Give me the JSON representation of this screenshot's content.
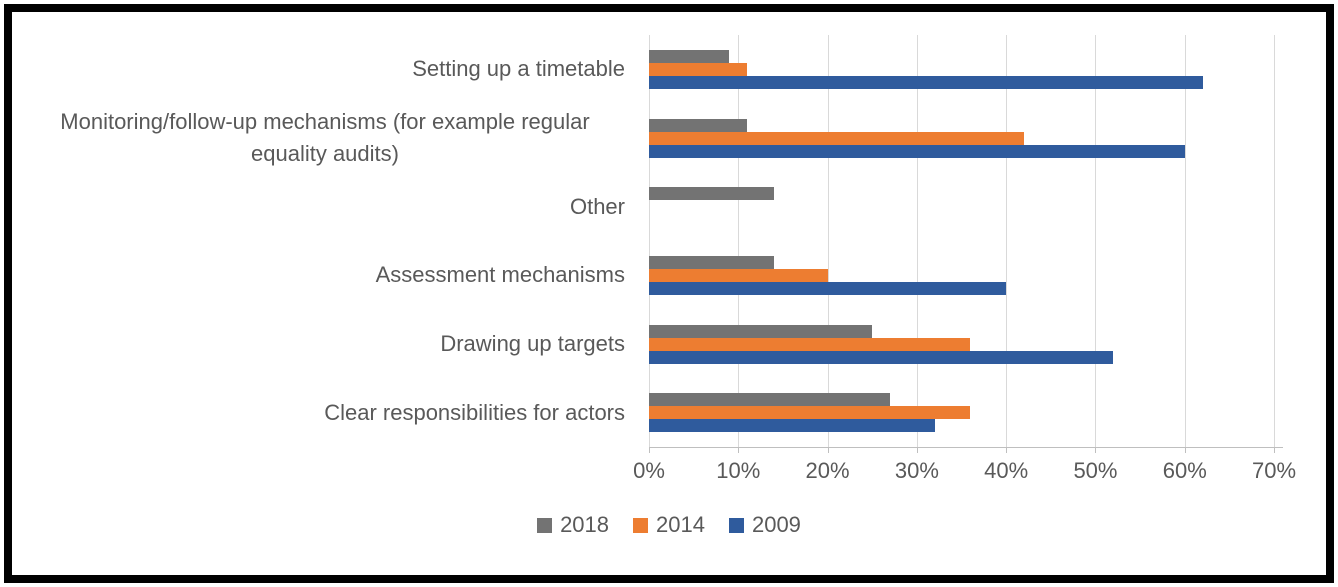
{
  "chart_data": {
    "type": "bar",
    "orientation": "horizontal",
    "title": "",
    "categories": [
      "Setting up a timetable",
      "Monitoring/follow-up mechanisms (for example regular equality audits)",
      "Other",
      "Assessment mechanisms",
      "Drawing up targets",
      "Clear responsibilities for actors"
    ],
    "series": [
      {
        "name": "2018",
        "color": "#737373",
        "values": [
          9,
          11,
          14,
          14,
          25,
          27
        ]
      },
      {
        "name": "2014",
        "color": "#ED7D31",
        "values": [
          11,
          42,
          0,
          20,
          36,
          36
        ]
      },
      {
        "name": "2009",
        "color": "#2F5B9D",
        "values": [
          62,
          60,
          0,
          40,
          52,
          32
        ]
      }
    ],
    "x_axis": {
      "unit": "%",
      "min": 0,
      "max": 70,
      "tick_step": 10,
      "tick_labels": [
        "0%",
        "10%",
        "20%",
        "30%",
        "40%",
        "50%",
        "60%",
        "70%"
      ],
      "plot_max": 71
    },
    "legend": {
      "position": "bottom",
      "entries": [
        "2018",
        "2014",
        "2009"
      ]
    },
    "grid": true,
    "colors": {
      "gridline": "#d9d9d9",
      "axis": "#bfbfbf",
      "text": "#595959",
      "frame_border": "#000000",
      "background": "#ffffff"
    }
  }
}
